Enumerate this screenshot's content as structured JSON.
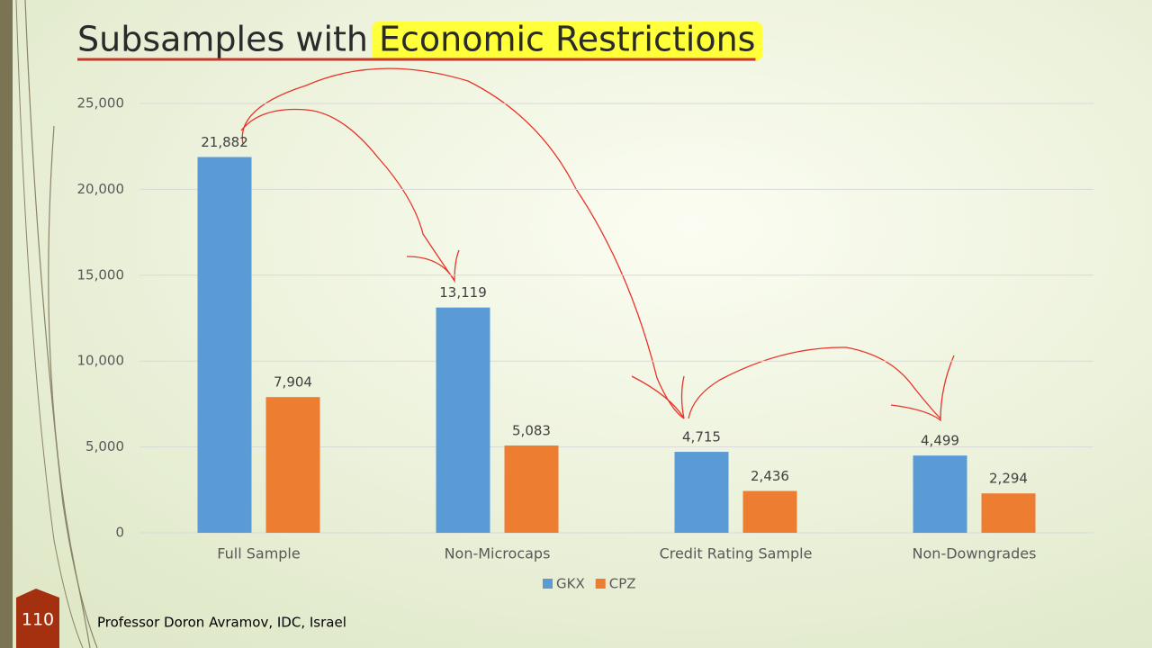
{
  "chart_data": {
    "type": "bar",
    "title": "Subsamples with",
    "title_highlight": "Economic Restrictions",
    "categories": [
      "Full Sample",
      "Non-Microcaps",
      "Credit Rating Sample",
      "Non-Downgrades"
    ],
    "series": [
      {
        "name": "GKX",
        "color": "#5b9bd5",
        "values": [
          21882,
          13119,
          4715,
          4499
        ],
        "value_labels": [
          "21,882",
          "13,119",
          "4,715",
          "4,499"
        ]
      },
      {
        "name": "CPZ",
        "color": "#ed7d31",
        "values": [
          7904,
          5083,
          2436,
          2294
        ],
        "value_labels": [
          "7,904",
          "5,083",
          "2,436",
          "2,294"
        ]
      }
    ],
    "ylim": [
      0,
      25000
    ],
    "yticks": [
      0,
      {
        "value": 5000,
        "label": "5,000"
      },
      {
        "value": 10000,
        "label": "10,000"
      },
      {
        "value": 15000,
        "label": "15,000"
      },
      {
        "value": 20000,
        "label": "20,000"
      },
      {
        "value": 25000,
        "label": "25,000"
      }
    ],
    "grid": true,
    "legend": "bottom"
  },
  "footer": "Professor Doron Avramov, IDC, Israel",
  "slide_number": "110"
}
